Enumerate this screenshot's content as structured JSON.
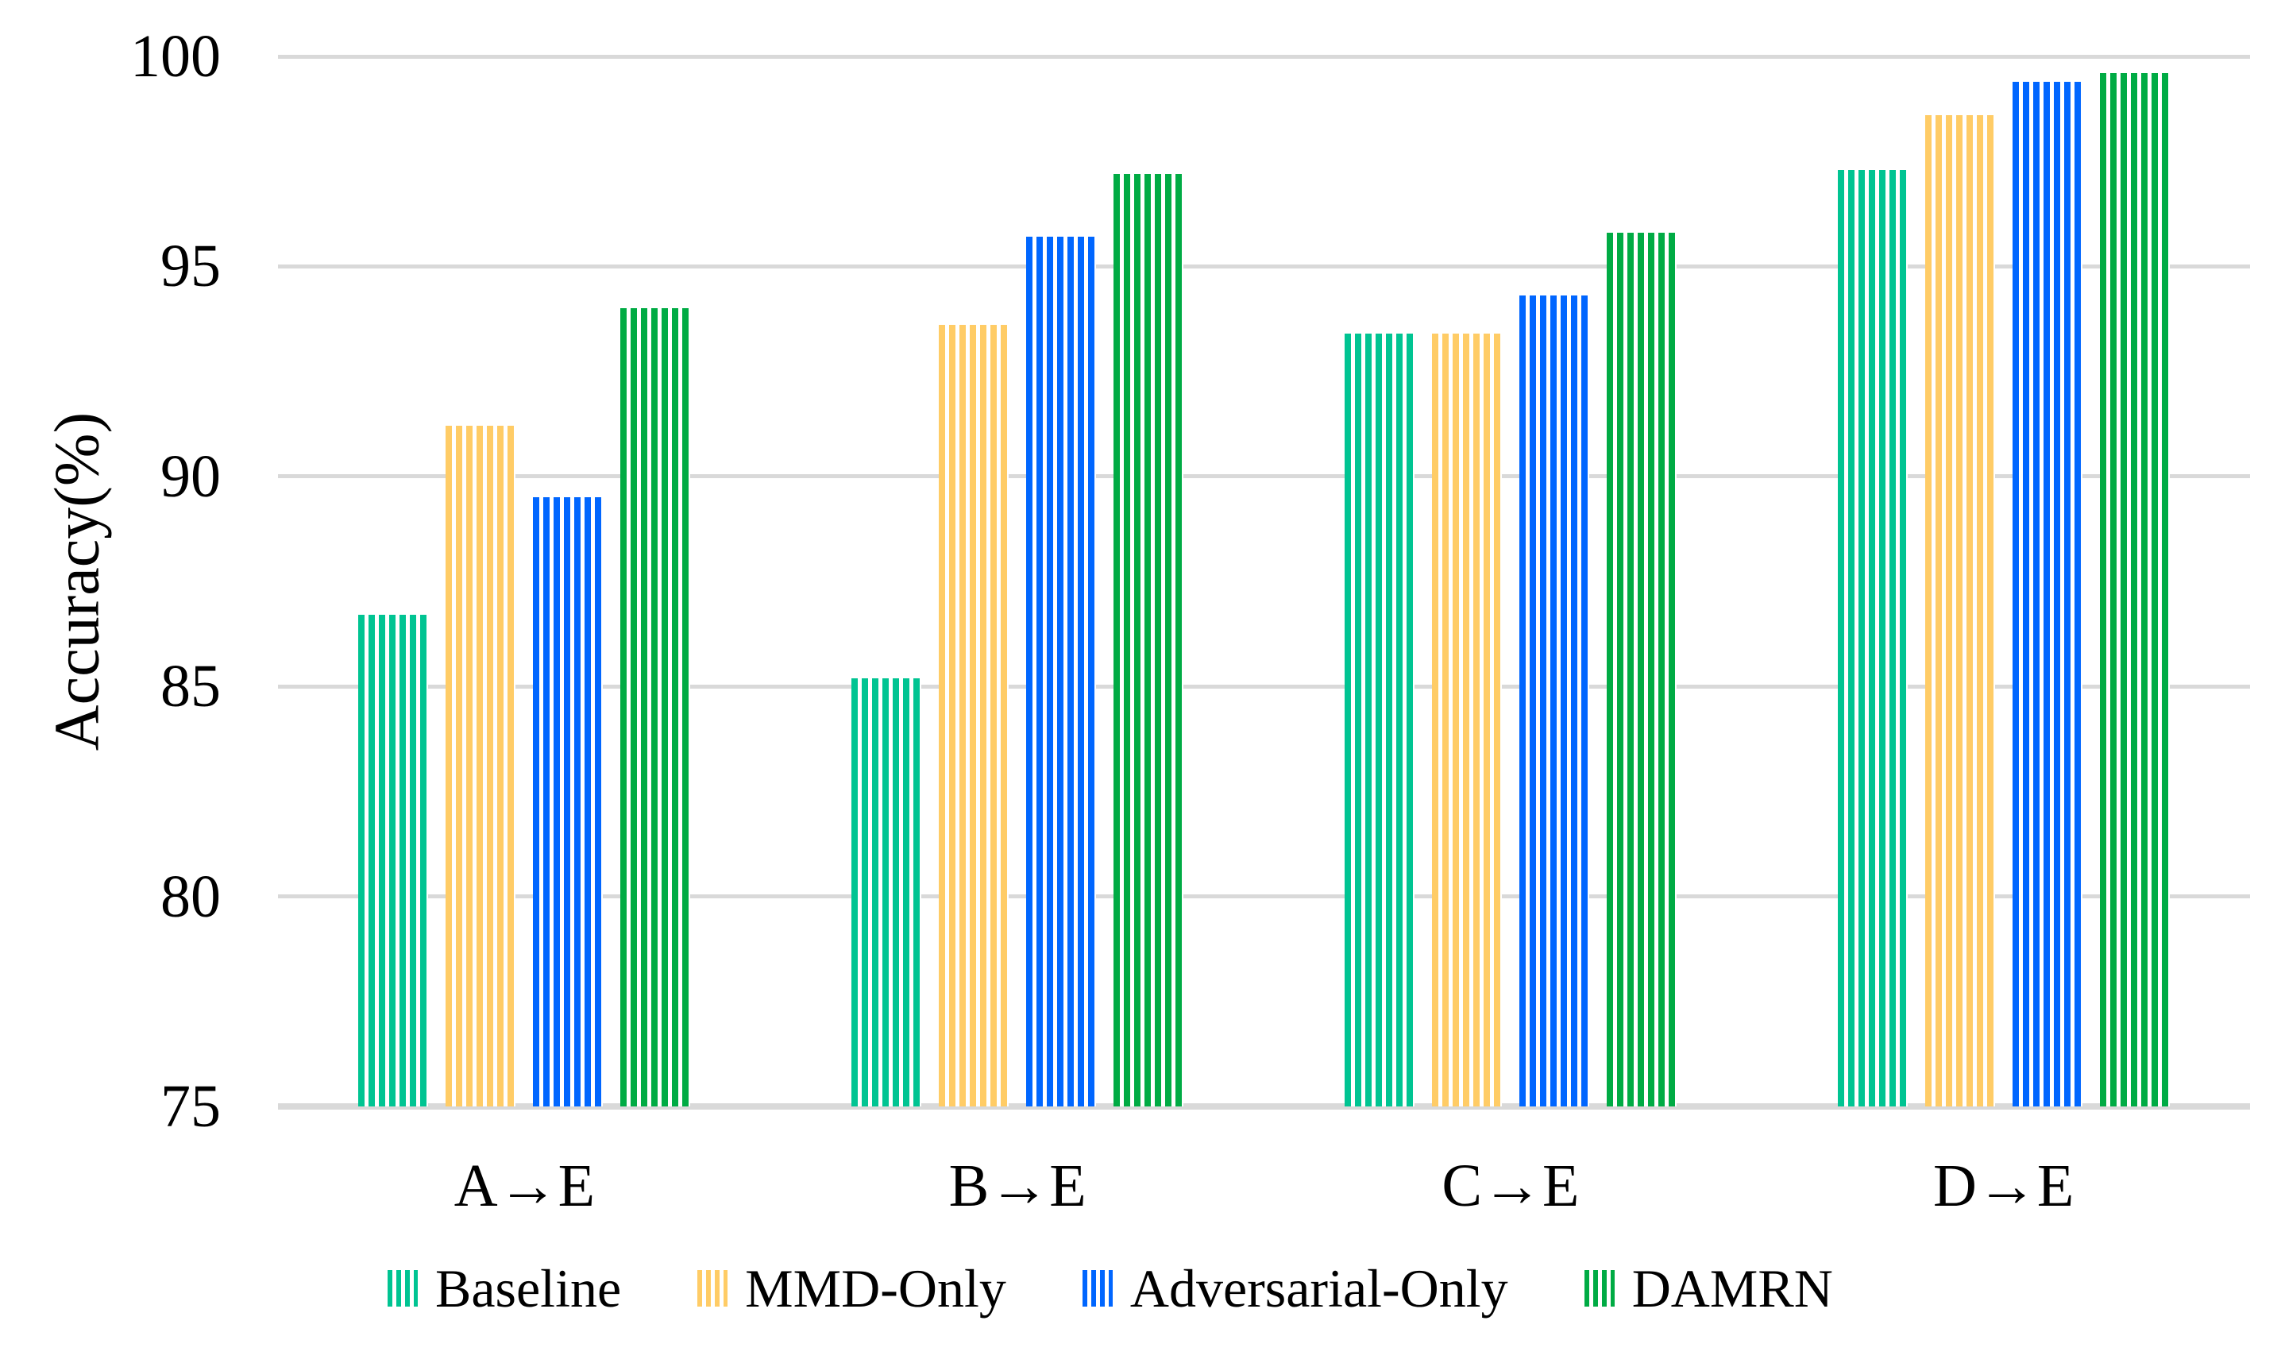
{
  "chart_data": {
    "type": "bar",
    "title": "",
    "ylabel": "Accuracy(%)",
    "xlabel": "",
    "categories": [
      "A→E",
      "B→E",
      "C→E",
      "D→E"
    ],
    "series": [
      {
        "name": "Baseline",
        "color": "#00C492",
        "values": [
          86.7,
          85.2,
          93.4,
          97.3
        ]
      },
      {
        "name": "MMD-Only",
        "color": "#FFCC66",
        "values": [
          91.2,
          93.6,
          93.4,
          98.6
        ]
      },
      {
        "name": "Adversarial-Only",
        "color": "#0066FF",
        "values": [
          89.5,
          95.7,
          94.3,
          99.4
        ]
      },
      {
        "name": "DAMRN",
        "color": "#00AB44",
        "values": [
          94.0,
          97.2,
          95.8,
          99.6
        ]
      }
    ],
    "ylim": [
      75,
      100
    ],
    "yticks": [
      75,
      80,
      85,
      90,
      95,
      100
    ],
    "grid": true,
    "legend_position": "bottom",
    "bar_pattern": "vertical-stripes"
  },
  "colors": {
    "gridline": "#D9D9D9",
    "axis_line": "#D9D9D9",
    "text": "#000000",
    "background": "#FFFFFF"
  }
}
